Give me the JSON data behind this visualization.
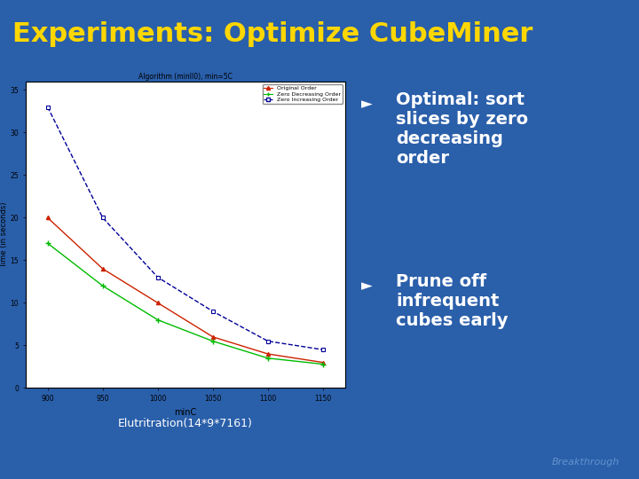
{
  "title": "Experiments: Optimize CubeMiner",
  "title_color": "#FFD700",
  "title_fontsize": 22,
  "bg_color": "#2A5FAA",
  "header_color": "#1A3F80",
  "plot_bg": "#FFFFFF",
  "subtitle": "Algorithm (minIl0), min=5C",
  "xlabel": "minC",
  "ylabel": "Time (in seconds)",
  "x_ticks": [
    900,
    950,
    1000,
    1050,
    1100,
    1150
  ],
  "ylim": [
    0,
    35
  ],
  "y_ticks": [
    0,
    5,
    10,
    15,
    20,
    25,
    30,
    35
  ],
  "caption": "Elutritration(14*9*7161)",
  "bullet1_line1": "Optimal: sort",
  "bullet1_line2": "slices by zero",
  "bullet1_line3": "decreasing",
  "bullet1_line4": "order",
  "bullet2_line1": "Prune off",
  "bullet2_line2": "infrequent",
  "bullet2_line3": "cubes early",
  "legend_labels": [
    "Original Order",
    "Zero Decreasing Order",
    "Zero Increasing Order"
  ],
  "legend_colors": [
    "#CC2200",
    "#00BB00",
    "#000099"
  ],
  "original_x": [
    900,
    950,
    1000,
    1050,
    1100,
    1150
  ],
  "original_y": [
    20,
    14,
    10,
    6,
    4,
    3
  ],
  "zero_dec_x": [
    900,
    950,
    1000,
    1050,
    1100,
    1150
  ],
  "zero_dec_y": [
    17,
    12,
    8,
    5.5,
    3.5,
    2.8
  ],
  "zero_inc_x": [
    900,
    950,
    1000,
    1050,
    1100,
    1150
  ],
  "zero_inc_y": [
    33,
    20,
    13,
    9,
    5.5,
    4.5
  ],
  "breakthrough_color": "#7AABDD"
}
